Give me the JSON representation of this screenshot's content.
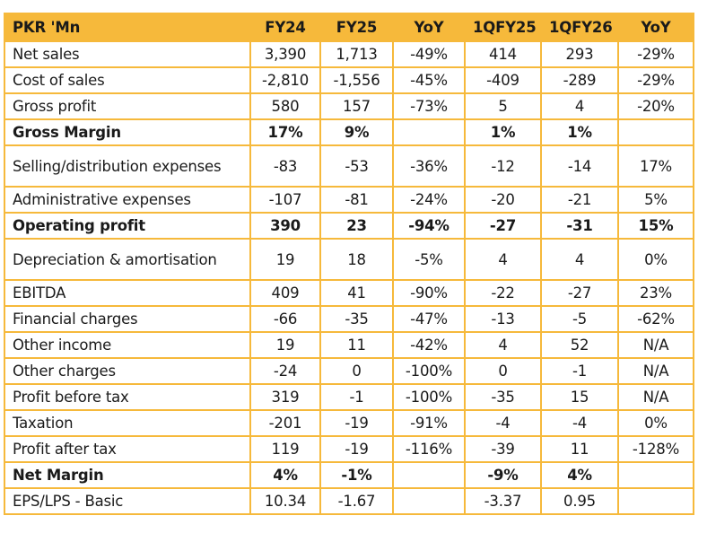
{
  "table": {
    "headers": [
      "PKR 'Mn",
      "FY24",
      "FY25",
      "YoY",
      "1QFY25",
      "1QFY26",
      "YoY"
    ],
    "rows": [
      {
        "label": "Net sales",
        "cells": [
          "3,390",
          "1,713",
          "-49%",
          "414",
          "293",
          "-29%"
        ],
        "bold": false
      },
      {
        "label": "Cost of sales",
        "cells": [
          "-2,810",
          "-1,556",
          "-45%",
          "-409",
          "-289",
          "-29%"
        ],
        "bold": false
      },
      {
        "label": "Gross profit",
        "cells": [
          "580",
          "157",
          "-73%",
          "5",
          "4",
          "-20%"
        ],
        "bold": false
      },
      {
        "label": "Gross Margin",
        "cells": [
          "17%",
          "9%",
          "",
          "1%",
          "1%",
          ""
        ],
        "bold": true
      },
      {
        "label": "Selling/distribution expenses",
        "cells": [
          "-83",
          "-53",
          "-36%",
          "-12",
          "-14",
          "17%"
        ],
        "bold": false,
        "wrap": true
      },
      {
        "label": "Administrative expenses",
        "cells": [
          "-107",
          "-81",
          "-24%",
          "-20",
          "-21",
          "5%"
        ],
        "bold": false
      },
      {
        "label": "Operating profit",
        "cells": [
          "390",
          "23",
          "-94%",
          "-27",
          "-31",
          "15%"
        ],
        "bold": true
      },
      {
        "label": "Depreciation & amortisation",
        "cells": [
          "19",
          "18",
          "-5%",
          "4",
          "4",
          "0%"
        ],
        "bold": false,
        "wrap": true
      },
      {
        "label": "EBITDA",
        "cells": [
          "409",
          "41",
          "-90%",
          "-22",
          "-27",
          "23%"
        ],
        "bold": false
      },
      {
        "label": "Financial charges",
        "cells": [
          "-66",
          "-35",
          "-47%",
          "-13",
          "-5",
          "-62%"
        ],
        "bold": false
      },
      {
        "label": "Other income",
        "cells": [
          "19",
          "11",
          "-42%",
          "4",
          "52",
          "N/A"
        ],
        "bold": false
      },
      {
        "label": "Other charges",
        "cells": [
          "-24",
          "0",
          "-100%",
          "0",
          "-1",
          "N/A"
        ],
        "bold": false
      },
      {
        "label": "Profit before tax",
        "cells": [
          "319",
          "-1",
          "-100%",
          "-35",
          "15",
          "N/A"
        ],
        "bold": false
      },
      {
        "label": "Taxation",
        "cells": [
          "-201",
          "-19",
          "-91%",
          "-4",
          "-4",
          "0%"
        ],
        "bold": false
      },
      {
        "label": "Profit after tax",
        "cells": [
          "119",
          "-19",
          "-116%",
          "-39",
          "11",
          "-128%"
        ],
        "bold": false
      },
      {
        "label": "Net Margin",
        "cells": [
          "4%",
          "-1%",
          "",
          "-9%",
          "4%",
          ""
        ],
        "bold": true
      },
      {
        "label": "EPS/LPS - Basic",
        "cells": [
          "10.34",
          "-1.67",
          "",
          "-3.37",
          "0.95",
          ""
        ],
        "bold": false
      }
    ]
  },
  "colors": {
    "header_bg": "#F6B93B",
    "border": "#F6B93B"
  }
}
